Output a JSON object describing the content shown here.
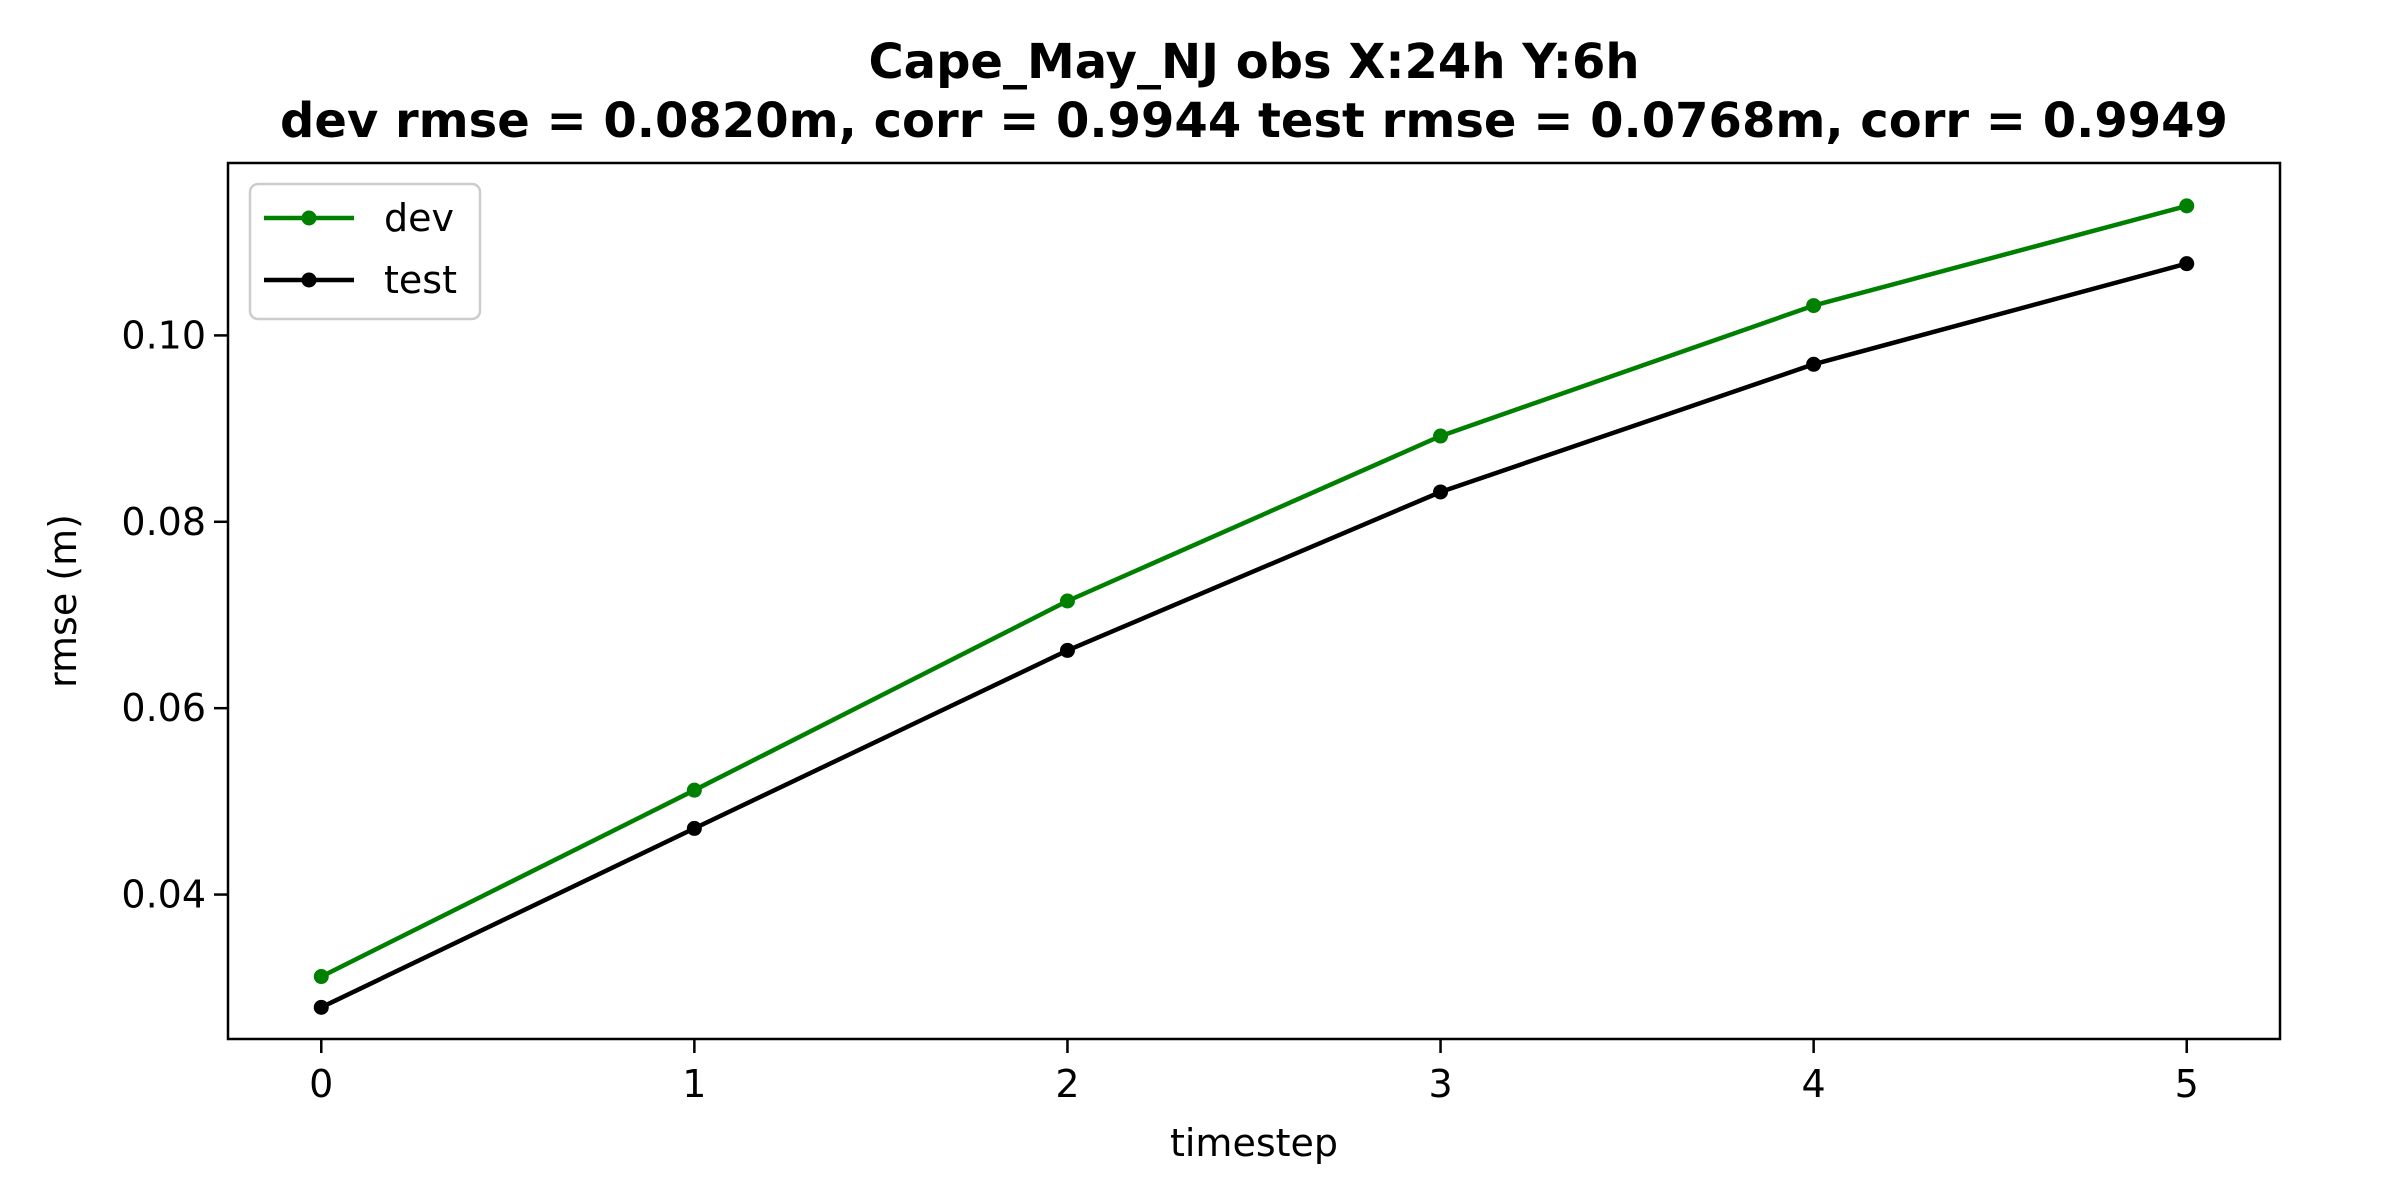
{
  "title_line1": "Cape_May_NJ   obs   X:24h   Y:6h",
  "title_line2": "dev rmse = 0.0820m, corr = 0.9944   test rmse = 0.0768m, corr = 0.9949",
  "chart_data": {
    "type": "line",
    "xlabel": "timestep",
    "ylabel": "rmse (m)",
    "x": [
      0,
      1,
      2,
      3,
      4,
      5
    ],
    "xlim": [
      -0.25,
      5.25
    ],
    "ylim": [
      0.0245,
      0.1185
    ],
    "xticks": [
      0,
      1,
      2,
      3,
      4,
      5
    ],
    "yticks": [
      0.04,
      0.06,
      0.08,
      0.1
    ],
    "ytick_labels": [
      "0.04",
      "0.06",
      "0.08",
      "0.10"
    ],
    "grid": false,
    "legend_position": "upper left",
    "series": [
      {
        "name": "dev",
        "color": "#008000",
        "values": [
          0.0312,
          0.0512,
          0.0715,
          0.0892,
          0.1032,
          0.1139
        ]
      },
      {
        "name": "test",
        "color": "#000000",
        "values": [
          0.0279,
          0.0471,
          0.0662,
          0.0832,
          0.0969,
          0.1077
        ]
      }
    ]
  }
}
